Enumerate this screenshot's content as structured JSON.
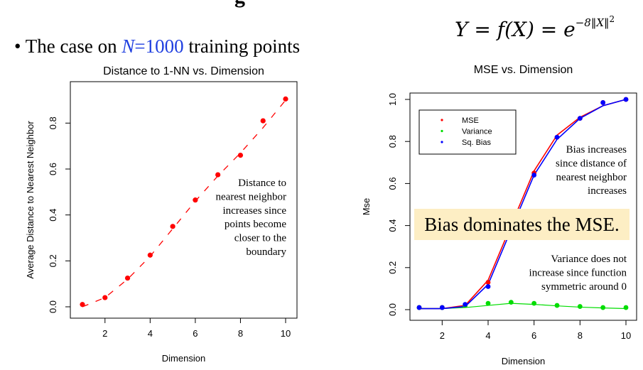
{
  "slide": {
    "heading_fragment": "g",
    "formula": {
      "lhs": "Y = f(X) = e",
      "exponent": "−8‖X‖",
      "exponent_power": "2"
    },
    "bullet": {
      "symbol": "•",
      "prefix": "The case on ",
      "n_var": "N",
      "n_rest": "=1000",
      "suffix": " training points"
    },
    "callout": "Bias dominates the MSE."
  },
  "chart_data": [
    {
      "type": "scatter",
      "title": "Distance to 1-NN vs. Dimension",
      "xlabel": "Dimension",
      "ylabel": "Average Distance to Nearest Neighbor",
      "xlim": [
        1,
        10
      ],
      "ylim": [
        0,
        0.9
      ],
      "xticks": [
        "2",
        "4",
        "6",
        "8",
        "10"
      ],
      "yticks": [
        "0.0",
        "0.2",
        "0.4",
        "0.6",
        "0.8"
      ],
      "x": [
        1,
        2,
        3,
        4,
        5,
        6,
        7,
        8,
        9,
        10
      ],
      "points": [
        0.01,
        0.04,
        0.125,
        0.225,
        0.35,
        0.465,
        0.575,
        0.66,
        0.81,
        0.905
      ],
      "fit_line": {
        "style": "dashed",
        "color": "#ff0000",
        "x": [
          1,
          2,
          3,
          4,
          5,
          6,
          7,
          8,
          9,
          10
        ],
        "y": [
          0.0,
          0.04,
          0.12,
          0.22,
          0.34,
          0.46,
          0.57,
          0.67,
          0.78,
          0.9
        ]
      },
      "point_color": "#ff0000",
      "annotation": [
        "Distance to",
        "nearest neighbor",
        "increases since",
        "points become",
        "closer to the",
        "boundary"
      ],
      "grid": false
    },
    {
      "type": "line",
      "title": "MSE vs. Dimension",
      "xlabel": "Dimension",
      "ylabel": "Mse",
      "xlim": [
        1,
        10
      ],
      "ylim": [
        0,
        1.0
      ],
      "xticks": [
        "2",
        "4",
        "6",
        "8",
        "10"
      ],
      "yticks": [
        "0.0",
        "0.2",
        "0.4",
        "0.6",
        "0.8",
        "1.0"
      ],
      "x": [
        1,
        2,
        3,
        4,
        5,
        6,
        7,
        8,
        9,
        10
      ],
      "series": [
        {
          "name": "MSE",
          "color": "#ff0000",
          "points": [
            0.01,
            0.01,
            0.02,
            0.13,
            0.38,
            0.65,
            0.82,
            0.91,
            0.985,
            1.0
          ],
          "line": [
            0.005,
            0.005,
            0.02,
            0.14,
            0.4,
            0.66,
            0.83,
            0.915,
            0.97,
            1.0
          ]
        },
        {
          "name": "Variance",
          "color": "#00dd00",
          "points": [
            0.01,
            0.01,
            0.02,
            0.03,
            0.035,
            0.03,
            0.02,
            0.015,
            0.01,
            0.01
          ],
          "line": [
            0.005,
            0.005,
            0.01,
            0.02,
            0.03,
            0.025,
            0.018,
            0.012,
            0.008,
            0.005
          ]
        },
        {
          "name": "Sq. Bias",
          "color": "#0000ff",
          "points": [
            0.01,
            0.01,
            0.025,
            0.11,
            0.36,
            0.64,
            0.82,
            0.91,
            0.985,
            1.0
          ],
          "line": [
            0.005,
            0.005,
            0.015,
            0.12,
            0.38,
            0.64,
            0.81,
            0.91,
            0.97,
            1.0
          ]
        }
      ],
      "legend_position": "top-left",
      "annotations": [
        [
          "Bias increases",
          "since distance of",
          "nearest neighbor",
          "increases"
        ],
        [
          "Variance does not",
          "increase since function",
          "symmetric around 0"
        ]
      ],
      "grid": false
    }
  ]
}
